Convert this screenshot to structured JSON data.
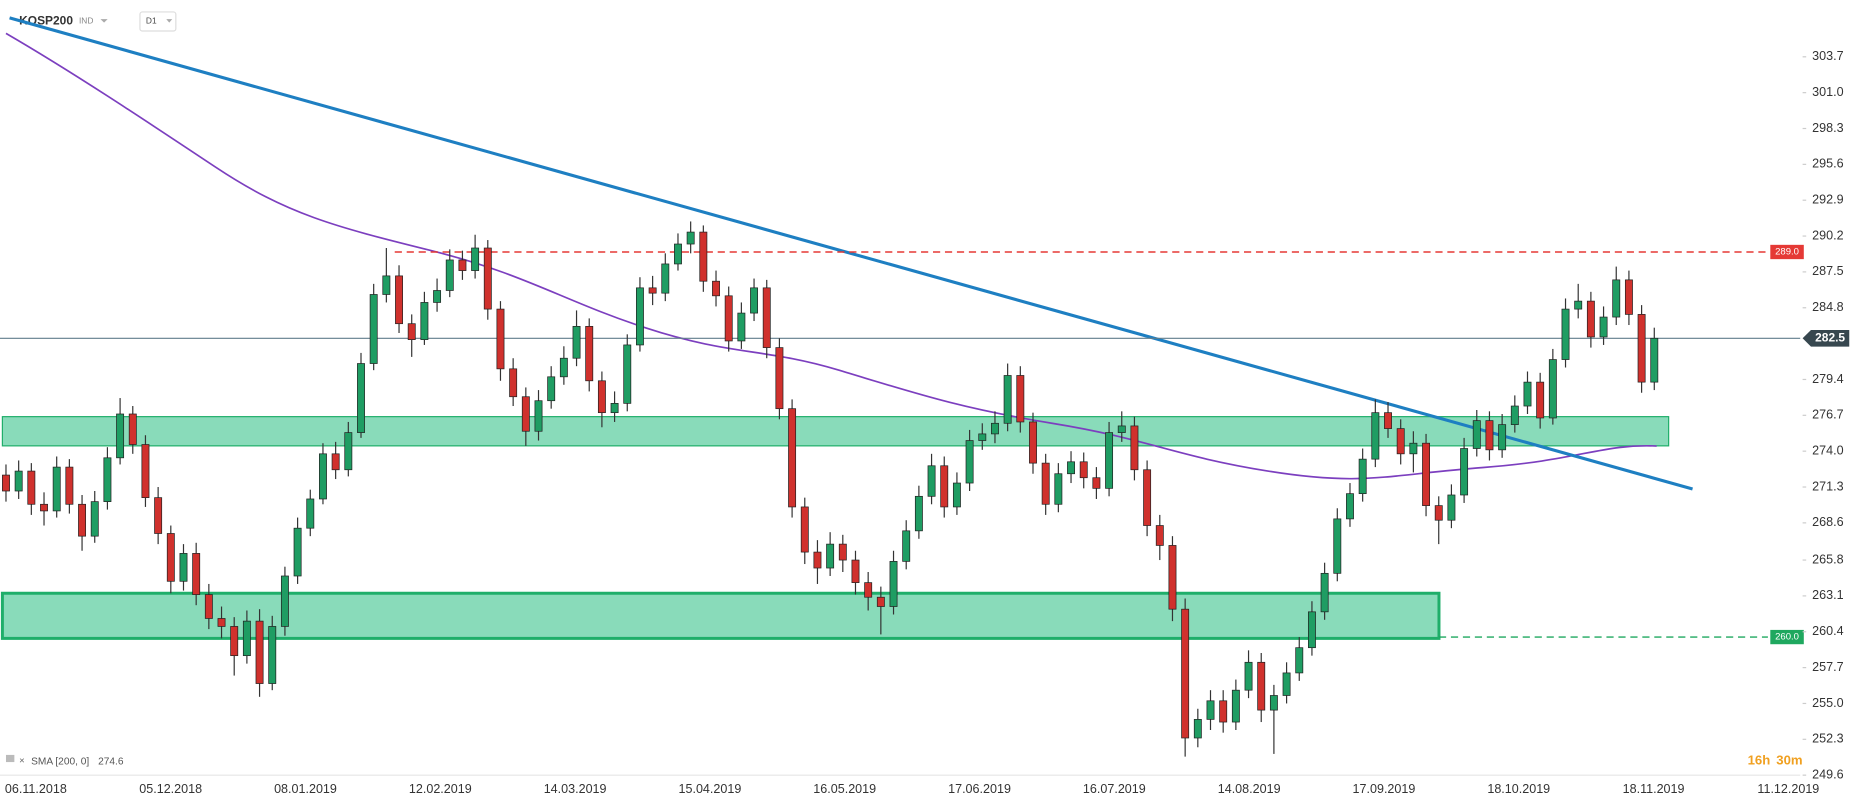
{
  "chart_data": {
    "type": "candlestick",
    "title": "KOSP200",
    "instrument_type": "IND",
    "interval": "D1",
    "up_color": "#1f9d63",
    "down_color": "#d0312d",
    "ylim": [
      248.7,
      306.9
    ],
    "yticks": [
      303.7,
      {
        "value": 301,
        "label": "301.0"
      },
      298.3,
      295.6,
      292.9,
      290.2,
      287.5,
      284.8,
      279.4,
      276.7,
      {
        "value": 274,
        "label": "274.0"
      },
      271.3,
      268.6,
      265.8,
      263.1,
      260.4,
      257.7,
      {
        "value": 255,
        "label": "255.0"
      },
      252.3,
      249.6
    ],
    "x_labels": [
      "06.11.2018",
      "05.12.2018",
      "08.01.2019",
      "12.02.2019",
      "14.03.2019",
      "15.04.2019",
      "16.05.2019",
      "17.06.2019",
      "16.07.2019",
      "14.08.2019",
      "17.09.2019",
      "18.10.2019",
      "18.11.2019",
      "11.12.2019"
    ],
    "open": [
      272.2,
      271,
      272.5,
      270,
      269.5,
      272.8,
      270,
      267.6,
      270.2,
      273.5,
      276.8,
      274.5,
      270.5,
      267.8,
      264.2,
      266.3,
      263.2,
      261.4,
      260.8,
      258.6,
      261.2,
      256.5,
      260.8,
      264.6,
      268.2,
      270.4,
      273.8,
      272.6,
      275.4,
      280.6,
      285.8,
      287.2,
      283.6,
      282.4,
      285.2,
      286.1,
      288.4,
      287.6,
      289.3,
      284.7,
      280.2,
      278.1,
      275.5,
      277.8,
      279.6,
      281.0,
      283.4,
      279.3,
      276.9,
      277.6,
      282.0,
      286.3,
      285.9,
      288.1,
      289.6,
      290.5,
      286.8,
      285.7,
      282.3,
      284.4,
      286.3,
      281.8,
      277.2,
      269.8,
      266.4,
      265.2,
      267.0,
      265.8,
      264.1,
      263.0,
      262.3,
      265.7,
      268.0,
      270.6,
      272.9,
      269.8,
      271.6,
      274.8,
      275.3,
      276.1,
      279.7,
      276.2,
      273.1,
      270.0,
      272.3,
      273.2,
      272.0,
      271.2,
      275.4,
      275.9,
      272.6,
      268.4,
      266.9,
      262.1,
      252.4,
      253.8,
      255.2,
      253.6,
      256.0,
      258.1,
      254.5,
      255.6,
      257.3,
      259.2,
      261.9,
      264.8,
      268.9,
      270.8,
      273.4,
      276.9,
      275.7,
      273.8,
      274.6,
      269.9,
      268.8,
      270.7,
      274.2,
      276.3,
      274.1,
      276.0,
      277.4,
      279.2,
      276.5,
      280.9,
      284.7,
      285.3,
      282.6,
      284.1,
      286.9,
      284.3,
      279.2
    ],
    "high": [
      273.0,
      273.3,
      273.1,
      270.9,
      273.6,
      273.4,
      270.7,
      271.0,
      274.3,
      278.0,
      277.4,
      275.2,
      271.3,
      268.4,
      267.0,
      267.1,
      264.0,
      262.3,
      261.5,
      262.0,
      262.1,
      261.6,
      265.3,
      269.0,
      271.1,
      274.6,
      274.7,
      276.2,
      281.4,
      286.6,
      289.3,
      288.0,
      284.3,
      286.0,
      287.0,
      289.2,
      289.1,
      290.3,
      289.9,
      285.3,
      281.0,
      278.8,
      278.6,
      280.4,
      281.9,
      284.6,
      284.0,
      280.0,
      278.5,
      282.8,
      287.1,
      287.2,
      288.9,
      290.4,
      291.3,
      291.0,
      287.6,
      286.4,
      285.2,
      287.0,
      286.9,
      282.5,
      277.9,
      270.5,
      267.3,
      267.9,
      267.7,
      266.5,
      264.9,
      263.8,
      266.5,
      268.8,
      271.4,
      273.8,
      273.6,
      272.4,
      275.6,
      276.1,
      277.0,
      280.6,
      280.4,
      276.9,
      273.8,
      273.1,
      274.0,
      273.9,
      272.8,
      276.2,
      277.0,
      276.6,
      273.3,
      269.2,
      267.6,
      262.9,
      254.6,
      256.0,
      256.0,
      256.8,
      259.0,
      258.8,
      256.4,
      258.1,
      260.0,
      262.7,
      265.6,
      269.7,
      271.6,
      274.2,
      277.9,
      277.7,
      276.4,
      275.5,
      275.3,
      270.6,
      271.5,
      275.0,
      277.1,
      277.0,
      276.8,
      278.2,
      280.0,
      279.9,
      281.7,
      285.5,
      286.6,
      286.0,
      284.9,
      287.9,
      287.6,
      285.0,
      283.3
    ],
    "low": [
      270.2,
      270.4,
      269.2,
      268.4,
      269.0,
      269.3,
      266.5,
      267.1,
      269.6,
      273.0,
      273.8,
      269.8,
      267.0,
      263.3,
      263.5,
      262.4,
      260.6,
      259.9,
      257.1,
      258.0,
      255.5,
      256.0,
      260.1,
      264.0,
      267.6,
      270.0,
      271.9,
      272.1,
      275.0,
      280.1,
      285.2,
      282.9,
      281.1,
      282.0,
      284.5,
      285.6,
      286.9,
      287.0,
      283.9,
      279.3,
      277.4,
      274.4,
      274.8,
      277.2,
      279.0,
      280.4,
      278.5,
      275.8,
      276.2,
      277.0,
      281.5,
      285.0,
      285.3,
      287.6,
      288.9,
      286.0,
      284.9,
      281.5,
      281.7,
      283.8,
      281.0,
      276.4,
      269.0,
      265.5,
      264.0,
      264.6,
      264.9,
      263.2,
      262.0,
      260.2,
      261.7,
      265.1,
      267.4,
      270.0,
      269.0,
      269.2,
      271.0,
      274.1,
      274.6,
      275.5,
      275.4,
      272.3,
      269.2,
      269.4,
      271.6,
      271.2,
      270.4,
      270.6,
      274.7,
      271.8,
      267.6,
      265.8,
      261.2,
      251.0,
      251.7,
      253.0,
      252.8,
      253.0,
      255.4,
      253.6,
      251.2,
      255.0,
      256.7,
      258.6,
      261.3,
      264.2,
      268.3,
      270.2,
      272.8,
      275.0,
      273.0,
      272.4,
      269.1,
      267.0,
      268.2,
      270.1,
      273.6,
      273.3,
      273.5,
      275.4,
      276.8,
      275.7,
      276.0,
      280.3,
      284.0,
      281.8,
      282.0,
      283.5,
      283.5,
      278.4,
      278.6
    ],
    "close": [
      271,
      272.5,
      270,
      269.5,
      272.8,
      270,
      267.6,
      270.2,
      273.5,
      276.8,
      274.5,
      270.5,
      267.8,
      264.2,
      266.3,
      263.2,
      261.4,
      260.8,
      258.6,
      261.2,
      256.5,
      260.8,
      264.6,
      268.2,
      270.4,
      273.8,
      272.6,
      275.4,
      280.6,
      285.8,
      287.2,
      283.6,
      282.4,
      285.2,
      286.1,
      288.4,
      287.6,
      289.3,
      284.7,
      280.2,
      278.1,
      275.5,
      277.8,
      279.6,
      281.0,
      283.4,
      279.3,
      276.9,
      277.6,
      282.0,
      286.3,
      285.9,
      288.1,
      289.6,
      290.5,
      286.8,
      285.7,
      282.3,
      284.4,
      286.3,
      281.8,
      277.2,
      269.8,
      266.4,
      265.2,
      267.0,
      265.8,
      264.1,
      263.0,
      262.3,
      265.7,
      268.0,
      270.6,
      272.9,
      269.8,
      271.6,
      274.8,
      275.3,
      276.1,
      279.7,
      276.2,
      273.1,
      270.0,
      272.3,
      273.2,
      272.0,
      271.2,
      275.4,
      275.9,
      272.6,
      268.4,
      266.9,
      262.1,
      252.4,
      253.8,
      255.2,
      253.6,
      256.0,
      258.1,
      254.5,
      255.6,
      257.3,
      259.2,
      261.9,
      264.8,
      268.9,
      270.8,
      273.4,
      276.9,
      275.7,
      273.8,
      274.6,
      269.9,
      268.8,
      270.7,
      274.2,
      276.3,
      274.1,
      276.0,
      277.4,
      279.2,
      276.5,
      280.9,
      284.7,
      285.3,
      282.6,
      284.1,
      286.9,
      284.3,
      279.2,
      282.5
    ],
    "levels": [
      {
        "value": 289,
        "label": "289.0",
        "color": "#e53935"
      },
      {
        "value": 260,
        "label": "260.0",
        "color": "#1fa85f"
      }
    ],
    "last_price": {
      "value": 282.5,
      "label": "282.5"
    },
    "zones": [
      {
        "from": 274.4,
        "to": 276.6
      },
      {
        "from": 259.9,
        "to": 263.3
      }
    ],
    "sma_label": "SMA [200, 0]",
    "sma_value": 274.6,
    "timer_hours": "16h",
    "timer_minutes": "30m"
  }
}
